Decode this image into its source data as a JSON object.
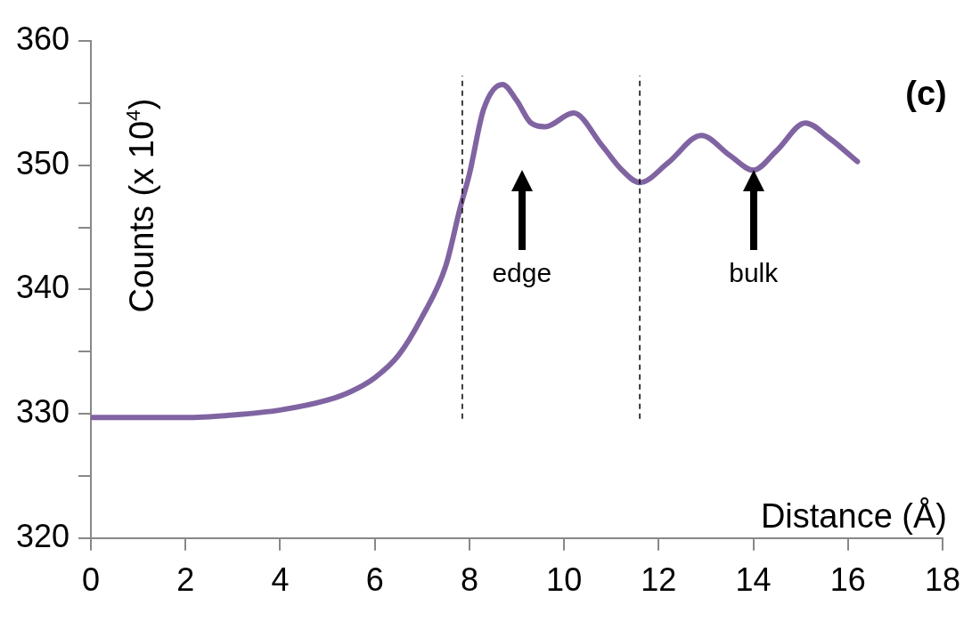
{
  "chart_data": {
    "type": "line",
    "xlabel": "Distance (Å)",
    "ylabel": "Counts (x 10$^{4}$)",
    "xlim": [
      0,
      18
    ],
    "xticks": [
      0,
      2,
      4,
      6,
      8,
      10,
      12,
      14,
      16,
      18
    ],
    "ylim": [
      320,
      360
    ],
    "yticks": [
      320,
      {
        "value": 325,
        "label": null
      },
      330,
      {
        "value": 335,
        "label": null
      },
      340,
      {
        "value": 345,
        "label": null
      },
      350,
      {
        "value": 355,
        "label": null
      },
      360
    ],
    "grid": false,
    "legend": false,
    "series": [
      {
        "color": "#8064a2",
        "x": [
          0,
          1,
          2,
          3,
          4,
          5,
          5.5,
          6,
          6.5,
          7,
          7.5,
          7.8,
          8,
          8.3,
          8.7,
          9,
          9.3,
          9.6,
          10.2,
          10.8,
          11.2,
          11.6,
          12.2,
          12.9,
          13.5,
          14,
          14.5,
          15.1,
          15.6,
          16.2
        ],
        "values": [
          329.7,
          329.7,
          329.7,
          329.9,
          330.3,
          331.1,
          331.8,
          332.9,
          334.7,
          337.8,
          341.9,
          346.5,
          349.3,
          354.5,
          356.5,
          355.2,
          353.4,
          353.1,
          354.2,
          351.6,
          349.7,
          348.6,
          350.2,
          352.4,
          350.8,
          349.6,
          351.2,
          353.4,
          352.2,
          350.3
        ]
      }
    ],
    "ref_lines": [
      {
        "axis": "x",
        "value": 7.85,
        "color": "#000000",
        "line_style": "dashed"
      },
      {
        "axis": "x",
        "value": 11.6,
        "color": "#000000",
        "line_style": "dashed"
      }
    ],
    "annotations": [
      "(c)",
      "edge",
      "bulk"
    ]
  }
}
